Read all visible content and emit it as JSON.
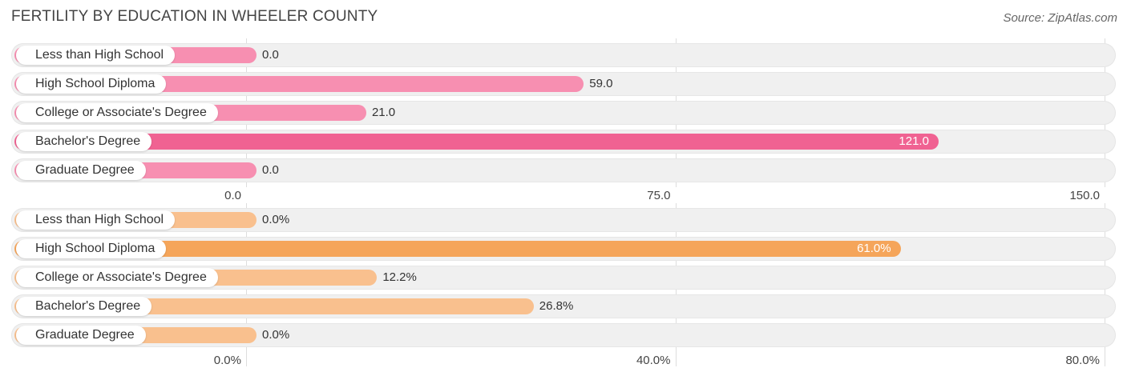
{
  "title": "FERTILITY BY EDUCATION IN WHEELER COUNTY",
  "source": "Source: ZipAtlas.com",
  "chart_data": [
    {
      "type": "bar",
      "orientation": "horizontal",
      "categories": [
        "Less than High School",
        "High School Diploma",
        "College or Associate's Degree",
        "Bachelor's Degree",
        "Graduate Degree"
      ],
      "values": [
        0.0,
        59.0,
        21.0,
        121.0,
        0.0
      ],
      "value_labels": [
        "0.0",
        "59.0",
        "21.0",
        "121.0",
        "0.0"
      ],
      "xlim": [
        0,
        150
      ],
      "ticks": [
        0,
        75,
        150
      ],
      "tick_labels": [
        "0.0",
        "75.0",
        "150.0"
      ],
      "colors": {
        "bar": "#f78fb1",
        "highlight": "#f06292"
      }
    },
    {
      "type": "bar",
      "orientation": "horizontal",
      "categories": [
        "Less than High School",
        "High School Diploma",
        "College or Associate's Degree",
        "Bachelor's Degree",
        "Graduate Degree"
      ],
      "values": [
        0.0,
        61.0,
        12.2,
        26.8,
        0.0
      ],
      "value_labels": [
        "0.0%",
        "61.0%",
        "12.2%",
        "26.8%",
        "0.0%"
      ],
      "xlim": [
        0,
        80
      ],
      "ticks": [
        0,
        40,
        80
      ],
      "tick_labels": [
        "0.0%",
        "40.0%",
        "80.0%"
      ],
      "colors": {
        "bar": "#f9c08e",
        "highlight": "#f5a55a"
      }
    }
  ]
}
